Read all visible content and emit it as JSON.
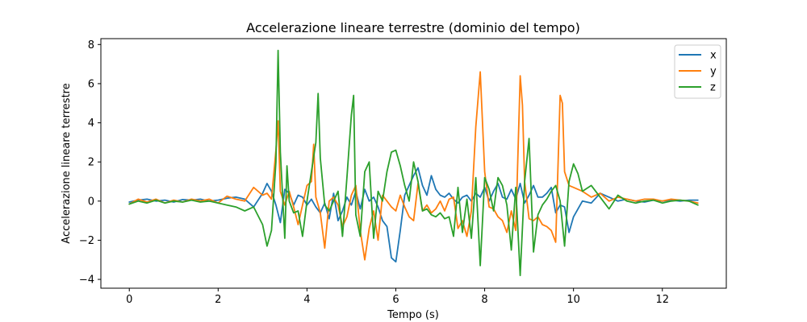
{
  "chart_data": {
    "type": "line",
    "title": "Accelerazione lineare terrestre (dominio del tempo)",
    "xlabel": "Tempo (s)",
    "ylabel": "Accelerazione lineare terrestre",
    "xlim": [
      -0.64,
      13.44
    ],
    "ylim": [
      -4.45,
      8.3
    ],
    "xticks": [
      0,
      2,
      4,
      6,
      8,
      10,
      12
    ],
    "yticks": [
      -4,
      -2,
      0,
      2,
      4,
      6,
      8
    ],
    "xtick_labels": [
      "0",
      "2",
      "4",
      "6",
      "8",
      "10",
      "12"
    ],
    "ytick_labels": [
      "−4",
      "−2",
      "0",
      "2",
      "4",
      "6",
      "8"
    ],
    "grid": false,
    "legend_position": "top-right",
    "series": [
      {
        "name": "x",
        "color": "#1f77b4",
        "x": [
          0.0,
          0.2,
          0.4,
          0.6,
          0.8,
          1.0,
          1.2,
          1.4,
          1.6,
          1.8,
          2.0,
          2.2,
          2.4,
          2.6,
          2.8,
          3.0,
          3.1,
          3.2,
          3.3,
          3.4,
          3.5,
          3.6,
          3.7,
          3.8,
          3.9,
          4.0,
          4.1,
          4.2,
          4.3,
          4.4,
          4.5,
          4.6,
          4.7,
          4.8,
          4.9,
          5.0,
          5.1,
          5.2,
          5.3,
          5.4,
          5.5,
          5.6,
          5.7,
          5.8,
          5.9,
          6.0,
          6.1,
          6.2,
          6.3,
          6.4,
          6.5,
          6.6,
          6.7,
          6.8,
          6.9,
          7.0,
          7.1,
          7.2,
          7.3,
          7.4,
          7.5,
          7.6,
          7.7,
          7.8,
          7.9,
          8.0,
          8.1,
          8.2,
          8.3,
          8.4,
          8.5,
          8.6,
          8.7,
          8.8,
          8.9,
          9.0,
          9.1,
          9.2,
          9.3,
          9.4,
          9.5,
          9.6,
          9.7,
          9.8,
          9.9,
          10.0,
          10.2,
          10.4,
          10.6,
          10.8,
          11.0,
          11.2,
          11.4,
          11.6,
          11.8,
          12.0,
          12.2,
          12.4,
          12.6,
          12.8
        ],
        "y": [
          -0.05,
          0.05,
          0.1,
          0.0,
          0.05,
          -0.05,
          0.08,
          0.05,
          0.1,
          0.0,
          0.05,
          0.15,
          0.2,
          0.1,
          -0.3,
          0.4,
          0.9,
          0.5,
          -0.2,
          -1.1,
          0.6,
          0.4,
          -0.2,
          0.3,
          0.2,
          -0.2,
          0.1,
          -0.3,
          -0.6,
          -0.1,
          -0.9,
          0.4,
          -1.0,
          -0.5,
          0.2,
          -0.2,
          0.5,
          -0.4,
          0.6,
          0.0,
          0.2,
          -0.3,
          -1.0,
          -1.3,
          -2.9,
          -3.1,
          -1.5,
          0.3,
          0.8,
          1.3,
          1.7,
          0.8,
          0.3,
          1.3,
          0.6,
          0.3,
          0.2,
          0.4,
          0.1,
          -0.1,
          0.2,
          0.3,
          0.0,
          0.4,
          0.2,
          0.7,
          0.0,
          0.5,
          0.9,
          0.2,
          0.1,
          0.6,
          0.1,
          0.9,
          -0.1,
          0.3,
          0.8,
          0.2,
          0.2,
          0.4,
          0.7,
          -0.6,
          -0.2,
          -0.3,
          -1.6,
          -0.8,
          0.0,
          -0.1,
          0.4,
          0.2,
          0.0,
          0.1,
          0.0,
          -0.05,
          0.05,
          0.0,
          0.05,
          0.0,
          0.05,
          0.05
        ]
      },
      {
        "name": "y",
        "color": "#ff7f0e",
        "x": [
          0.0,
          0.2,
          0.4,
          0.6,
          0.8,
          1.0,
          1.2,
          1.4,
          1.6,
          1.8,
          2.0,
          2.2,
          2.4,
          2.6,
          2.8,
          3.0,
          3.1,
          3.2,
          3.3,
          3.35,
          3.4,
          3.5,
          3.6,
          3.7,
          3.8,
          3.9,
          4.0,
          4.1,
          4.15,
          4.2,
          4.3,
          4.4,
          4.5,
          4.6,
          4.7,
          4.8,
          4.9,
          5.0,
          5.1,
          5.2,
          5.3,
          5.4,
          5.5,
          5.6,
          5.7,
          5.8,
          5.9,
          6.0,
          6.1,
          6.2,
          6.3,
          6.4,
          6.5,
          6.6,
          6.7,
          6.8,
          6.9,
          7.0,
          7.1,
          7.2,
          7.3,
          7.4,
          7.5,
          7.6,
          7.7,
          7.8,
          7.9,
          8.0,
          8.1,
          8.2,
          8.3,
          8.4,
          8.5,
          8.6,
          8.7,
          8.8,
          8.85,
          8.9,
          9.0,
          9.1,
          9.2,
          9.3,
          9.4,
          9.5,
          9.6,
          9.7,
          9.75,
          9.8,
          9.9,
          10.0,
          10.2,
          10.4,
          10.6,
          10.8,
          11.0,
          11.2,
          11.4,
          11.6,
          11.8,
          12.0,
          12.2,
          12.4,
          12.6,
          12.8
        ],
        "y": [
          -0.15,
          0.1,
          -0.05,
          0.1,
          -0.1,
          0.05,
          -0.05,
          0.1,
          0.0,
          0.1,
          -0.1,
          0.25,
          0.1,
          0.0,
          0.7,
          0.3,
          0.4,
          0.1,
          2.6,
          4.1,
          0.5,
          -0.2,
          0.5,
          -0.3,
          -1.2,
          -0.2,
          0.8,
          1.0,
          2.9,
          0.2,
          -0.6,
          -2.4,
          0.0,
          0.2,
          -0.2,
          -1.3,
          -0.8,
          0.3,
          0.8,
          -1.5,
          -3.0,
          -1.4,
          -0.5,
          -2.0,
          0.3,
          0.0,
          -0.3,
          -0.5,
          0.3,
          -0.3,
          -0.8,
          -1.0,
          0.9,
          -0.5,
          -0.2,
          -0.6,
          -0.4,
          0.0,
          -0.5,
          0.1,
          0.2,
          -1.4,
          -1.0,
          -1.8,
          -0.5,
          3.8,
          6.6,
          1.5,
          -0.3,
          -0.4,
          -0.8,
          -1.0,
          -1.6,
          -0.5,
          -1.5,
          6.4,
          4.9,
          1.0,
          -0.9,
          -1.0,
          -0.8,
          -1.2,
          -1.3,
          -1.5,
          -2.1,
          5.4,
          5.0,
          1.5,
          0.8,
          0.7,
          0.5,
          0.2,
          0.4,
          0.0,
          0.2,
          0.1,
          0.0,
          0.1,
          0.1,
          0.0,
          0.1,
          0.05,
          0.0,
          -0.1
        ]
      },
      {
        "name": "z",
        "color": "#2ca02c",
        "x": [
          0.0,
          0.2,
          0.4,
          0.6,
          0.8,
          1.0,
          1.2,
          1.4,
          1.6,
          1.8,
          2.0,
          2.2,
          2.4,
          2.6,
          2.8,
          3.0,
          3.1,
          3.2,
          3.3,
          3.35,
          3.4,
          3.5,
          3.55,
          3.6,
          3.7,
          3.8,
          3.9,
          4.0,
          4.1,
          4.2,
          4.25,
          4.3,
          4.4,
          4.5,
          4.6,
          4.7,
          4.8,
          4.9,
          5.0,
          5.05,
          5.1,
          5.2,
          5.3,
          5.4,
          5.5,
          5.6,
          5.7,
          5.8,
          5.9,
          6.0,
          6.1,
          6.2,
          6.3,
          6.4,
          6.5,
          6.6,
          6.7,
          6.8,
          6.9,
          7.0,
          7.1,
          7.2,
          7.3,
          7.4,
          7.5,
          7.6,
          7.7,
          7.8,
          7.9,
          8.0,
          8.1,
          8.2,
          8.3,
          8.4,
          8.5,
          8.6,
          8.7,
          8.8,
          8.9,
          9.0,
          9.1,
          9.2,
          9.3,
          9.4,
          9.5,
          9.6,
          9.7,
          9.8,
          9.9,
          10.0,
          10.1,
          10.2,
          10.4,
          10.6,
          10.8,
          11.0,
          11.2,
          11.4,
          11.6,
          11.8,
          12.0,
          12.2,
          12.4,
          12.6,
          12.8
        ],
        "y": [
          -0.15,
          0.0,
          -0.1,
          0.05,
          -0.1,
          0.0,
          -0.05,
          0.05,
          -0.05,
          0.0,
          -0.1,
          -0.2,
          -0.3,
          -0.5,
          -0.3,
          -1.2,
          -2.3,
          -1.5,
          2.0,
          7.7,
          2.5,
          -1.9,
          1.8,
          0.0,
          -0.6,
          -0.5,
          -1.8,
          0.0,
          1.5,
          3.0,
          5.5,
          2.2,
          -0.2,
          -0.5,
          0.0,
          0.5,
          -1.8,
          1.2,
          4.4,
          5.4,
          -0.7,
          -1.8,
          1.5,
          2.0,
          -1.9,
          0.5,
          0.0,
          1.5,
          2.5,
          2.6,
          1.8,
          0.8,
          0.0,
          2.0,
          1.0,
          -0.5,
          -0.4,
          -0.7,
          -0.8,
          -0.6,
          -0.9,
          -0.8,
          -1.8,
          0.7,
          -1.6,
          0.1,
          -1.9,
          1.2,
          -3.3,
          1.2,
          0.6,
          -0.5,
          1.2,
          0.8,
          -0.2,
          -2.5,
          0.7,
          -3.8,
          1.0,
          3.2,
          -2.6,
          -0.7,
          -0.2,
          0.1,
          0.5,
          0.8,
          0.0,
          -2.3,
          1.0,
          1.9,
          1.4,
          0.5,
          0.8,
          0.2,
          -0.4,
          0.3,
          0.0,
          -0.1,
          0.0,
          0.05,
          -0.1,
          0.0,
          0.05,
          0.0,
          -0.2
        ]
      }
    ]
  }
}
